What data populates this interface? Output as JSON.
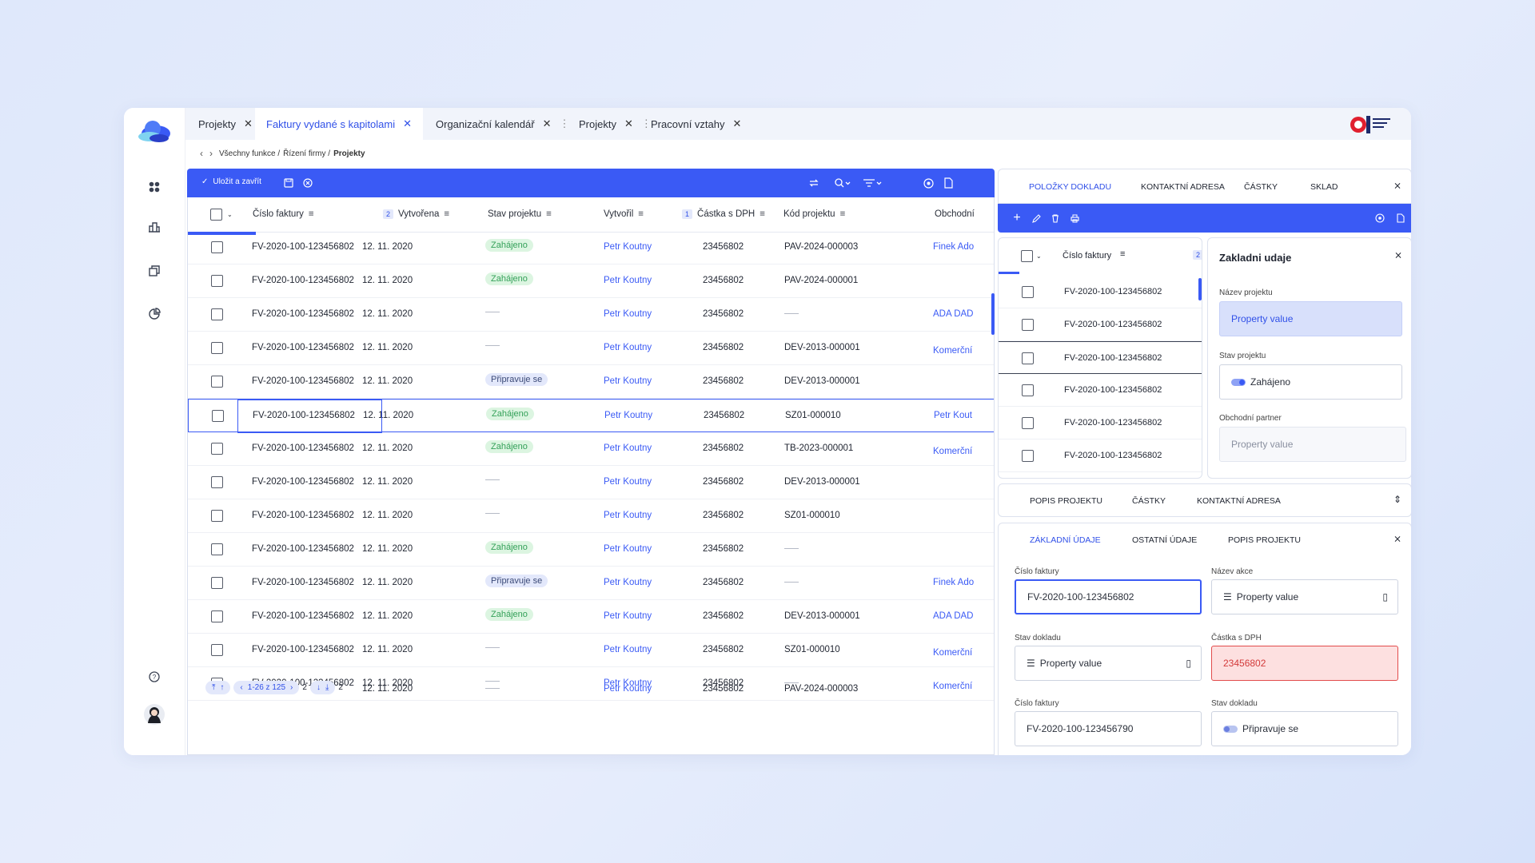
{
  "tabs": [
    {
      "label": "Projekty"
    },
    {
      "label": "Faktury vydané s kapitolami"
    },
    {
      "label": "Organizační kalendář"
    },
    {
      "label": "Projekty"
    },
    {
      "label": "Pracovní vztahy"
    }
  ],
  "breadcrumb": {
    "part1": "Všechny funkce /",
    "part2": "Řízení firmy /",
    "current": "Projekty"
  },
  "toolbar": {
    "save_label": "Uložit a zavřít"
  },
  "grid": {
    "columns": [
      "Číslo faktury",
      "Vytvořena",
      "Stav projektu",
      "Vytvořil",
      "Částka s DPH",
      "Kód projektu",
      "Obchodní"
    ],
    "badge_created": "2",
    "badge_amount": "1",
    "rows": [
      {
        "invoice": "FV-2020-100-123456802",
        "date": "12. 11. 2020",
        "status": "Zahájeno",
        "status_type": "green",
        "by": "Petr Koutny",
        "amount": "23456802",
        "code": "PAV-2024-000003",
        "partner": "Finek Ado"
      },
      {
        "invoice": "FV-2020-100-123456802",
        "date": "12. 11. 2020",
        "status": "Zahájeno",
        "status_type": "green",
        "by": "Petr Koutny",
        "amount": "23456802",
        "code": "PAV-2024-000001",
        "partner": ""
      },
      {
        "invoice": "FV-2020-100-123456802",
        "date": "12. 11. 2020",
        "status": "",
        "status_type": "dash",
        "by": "Petr Koutny",
        "amount": "23456802",
        "code": "",
        "partner": "ADA DAD"
      },
      {
        "invoice": "FV-2020-100-123456802",
        "date": "12. 11. 2020",
        "status": "",
        "status_type": "dash",
        "by": "Petr Koutny",
        "amount": "23456802",
        "code": "DEV-2013-000001",
        "partner": "Komerční"
      },
      {
        "invoice": "FV-2020-100-123456802",
        "date": "12. 11. 2020",
        "status": "Připravuje se",
        "status_type": "blue",
        "by": "Petr Koutny",
        "amount": "23456802",
        "code": "DEV-2013-000001",
        "partner": ""
      },
      {
        "invoice": "FV-2020-100-123456802",
        "date": "12. 11. 2020",
        "status": "Zahájeno",
        "status_type": "green",
        "by": "Petr Koutny",
        "amount": "23456802",
        "code": "SZ01-000010",
        "partner": "Petr Kout"
      },
      {
        "invoice": "FV-2020-100-123456802",
        "date": "12. 11. 2020",
        "status": "Zahájeno",
        "status_type": "green",
        "by": "Petr Koutny",
        "amount": "23456802",
        "code": "TB-2023-000001",
        "partner": "Komerční"
      },
      {
        "invoice": "FV-2020-100-123456802",
        "date": "12. 11. 2020",
        "status": "",
        "status_type": "dash",
        "by": "Petr Koutny",
        "amount": "23456802",
        "code": "DEV-2013-000001",
        "partner": ""
      },
      {
        "invoice": "FV-2020-100-123456802",
        "date": "12. 11. 2020",
        "status": "",
        "status_type": "dash",
        "by": "Petr Koutny",
        "amount": "23456802",
        "code": "SZ01-000010",
        "partner": ""
      },
      {
        "invoice": "FV-2020-100-123456802",
        "date": "12. 11. 2020",
        "status": "Zahájeno",
        "status_type": "green",
        "by": "Petr Koutny",
        "amount": "23456802",
        "code": "",
        "partner": ""
      },
      {
        "invoice": "FV-2020-100-123456802",
        "date": "12. 11. 2020",
        "status": "Připravuje se",
        "status_type": "blue",
        "by": "Petr Koutny",
        "amount": "23456802",
        "code": "",
        "partner": "Finek Ado"
      },
      {
        "invoice": "FV-2020-100-123456802",
        "date": "12. 11. 2020",
        "status": "Zahájeno",
        "status_type": "green",
        "by": "Petr Koutny",
        "amount": "23456802",
        "code": "DEV-2013-000001",
        "partner": "ADA DAD"
      },
      {
        "invoice": "FV-2020-100-123456802",
        "date": "12. 11. 2020",
        "status": "",
        "status_type": "dash",
        "by": "Petr Koutny",
        "amount": "23456802",
        "code": "SZ01-000010",
        "partner": "Komerční"
      },
      {
        "invoice": "FV-2020-100-123456802",
        "date": "12. 11. 2020",
        "status": "",
        "status_type": "dash",
        "by": "Petr Koutny",
        "amount": "23456802",
        "code": "",
        "partner": "Komerční"
      }
    ],
    "last_row": {
      "date": "12. 11. 2020",
      "by": "Petr Koutny",
      "amount": "23456802",
      "code": "PAV-2024-000003"
    },
    "pager": {
      "range": "1-26 z 125",
      "n1": "2",
      "n2": "2"
    }
  },
  "right": {
    "top_tabs": [
      "POLOŽKY DOKLADU",
      "KONTAKTNÍ ADRESA",
      "ČÁSTKY",
      "SKLAD"
    ],
    "mini_grid": {
      "header": "Číslo faktury",
      "badge": "2",
      "rows": [
        "FV-2020-100-123456802",
        "FV-2020-100-123456802",
        "FV-2020-100-123456802",
        "FV-2020-100-123456802",
        "FV-2020-100-123456802",
        "FV-2020-100-123456802"
      ]
    },
    "detail": {
      "title": "Zakladni udaje",
      "name_label": "Název projektu",
      "name_value": "Property value",
      "status_label": "Stav projektu",
      "status_value": "Zahájeno",
      "partner_label": "Obchodní partner",
      "partner_value": "Property value"
    },
    "mid_tabs": [
      "POPIS PROJEKTU",
      "ČÁSTKY",
      "KONTAKTNÍ ADRESA"
    ],
    "form_tabs": [
      "ZÁKLADNÍ ÚDAJE",
      "OSTATNÍ ÚDAJE",
      "POPIS PROJEKTU"
    ],
    "form": {
      "f1_label": "Číslo faktury",
      "f1_value": "FV-2020-100-123456802",
      "f2_label": "Název akce",
      "f2_value": "Property value",
      "f3_label": "Stav dokladu",
      "f3_value": "Property value",
      "f4_label": "Částka s DPH",
      "f4_value": "23456802",
      "f5_label": "Číslo faktury",
      "f5_value": "FV-2020-100-123456790",
      "f6_label": "Stav dokladu",
      "f6_value": "Připravuje se"
    }
  },
  "colors": {
    "accent": "#3a5af5",
    "green_pill": "#dcf5e1",
    "error_bg": "#fde0e0"
  }
}
